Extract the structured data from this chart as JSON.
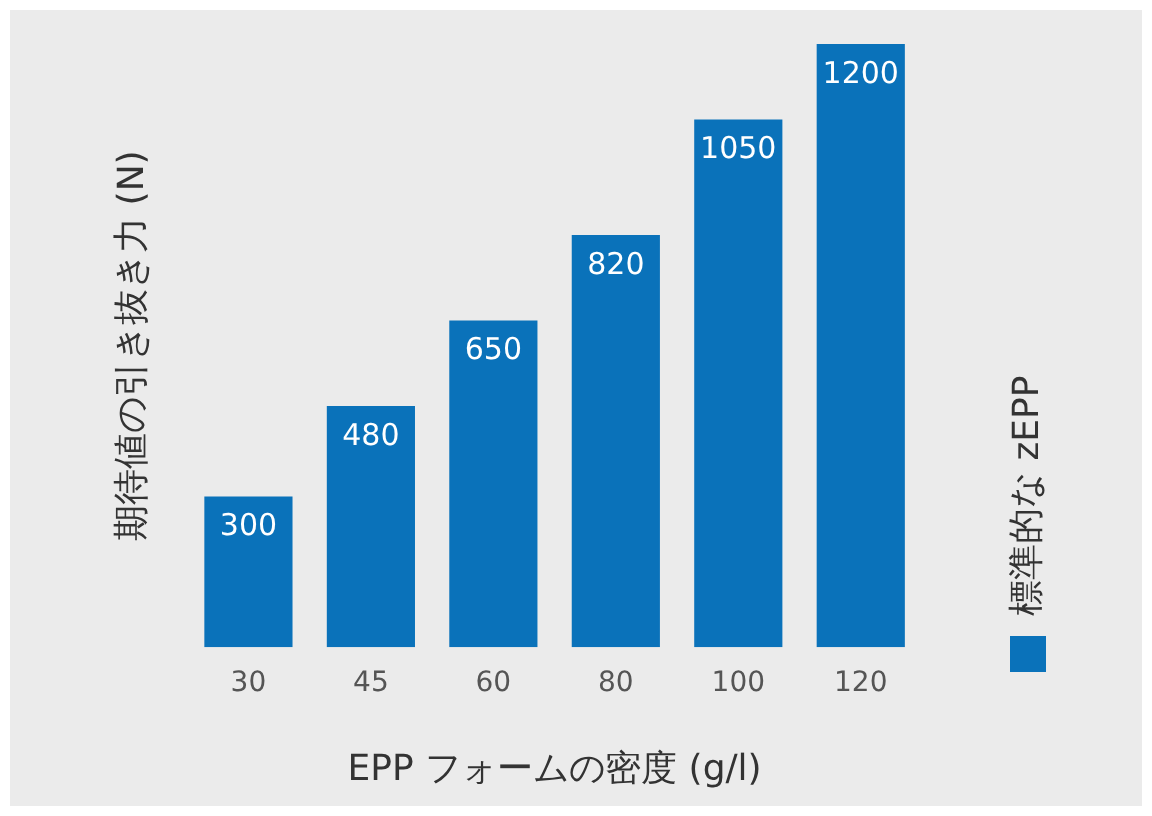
{
  "chart_data": {
    "type": "bar",
    "xlabel": "EPP フォームの密度 (g/l)",
    "ylabel": "期待値の引き抜き力 (N)",
    "categories": [
      "30",
      "45",
      "60",
      "80",
      "100",
      "120"
    ],
    "series": [
      {
        "name": "標準的な zEPP",
        "color": "#0a72ba",
        "values": [
          300,
          480,
          650,
          820,
          1050,
          1200
        ]
      }
    ],
    "data_labels": true,
    "legend": "right",
    "grid": false
  }
}
